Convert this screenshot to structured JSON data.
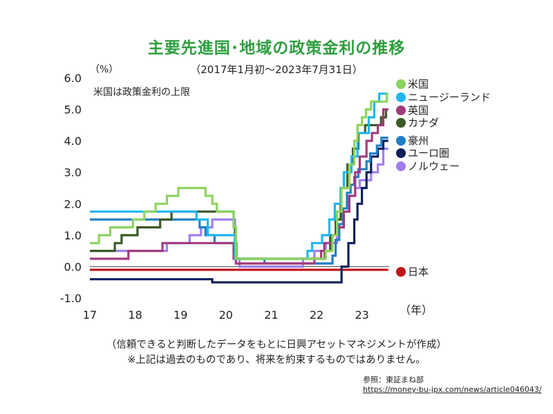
{
  "title": "主要先進国･地域の政策金利の推移",
  "subtitle": "（2017年1月初～2023年7月31日）",
  "unit": "（%）",
  "note": "米国は政策金利の上限",
  "footer_line1": "（信頼できると判断したデータをもとに日興アセットマネジメントが作成）",
  "footer_line2": "※上記は過去のものであり、将来を約束するものではありません。",
  "ref_label": "参照：東証まね部",
  "ref_url": "https://money-bu-jpx.com/news/article046043/",
  "chart_data": {
    "type": "line",
    "x_label_unit": "（年）",
    "xlim": [
      2017,
      2023.6
    ],
    "ylim": [
      -1.0,
      6.0
    ],
    "y_ticks": [
      "6.0",
      "5.0",
      "4.0",
      "3.0",
      "2.0",
      "1.0",
      "0.0",
      "-1.0"
    ],
    "x_ticks": [
      "17",
      "18",
      "19",
      "20",
      "21",
      "22",
      "23"
    ],
    "series": [
      {
        "name": "米国",
        "color": "#8dd35f",
        "points": [
          [
            2017.0,
            0.75
          ],
          [
            2017.2,
            0.75
          ],
          [
            2017.2,
            1.0
          ],
          [
            2017.45,
            1.0
          ],
          [
            2017.45,
            1.25
          ],
          [
            2017.95,
            1.25
          ],
          [
            2017.95,
            1.5
          ],
          [
            2018.2,
            1.5
          ],
          [
            2018.2,
            1.75
          ],
          [
            2018.45,
            1.75
          ],
          [
            2018.45,
            2.0
          ],
          [
            2018.7,
            2.0
          ],
          [
            2018.7,
            2.25
          ],
          [
            2018.95,
            2.25
          ],
          [
            2018.95,
            2.5
          ],
          [
            2019.55,
            2.5
          ],
          [
            2019.55,
            2.25
          ],
          [
            2019.7,
            2.25
          ],
          [
            2019.7,
            2.0
          ],
          [
            2019.8,
            2.0
          ],
          [
            2019.8,
            1.75
          ],
          [
            2020.17,
            1.75
          ],
          [
            2020.17,
            1.25
          ],
          [
            2020.22,
            1.25
          ],
          [
            2020.22,
            0.25
          ],
          [
            2022.2,
            0.25
          ],
          [
            2022.2,
            0.5
          ],
          [
            2022.35,
            0.5
          ],
          [
            2022.35,
            1.0
          ],
          [
            2022.45,
            1.0
          ],
          [
            2022.45,
            1.75
          ],
          [
            2022.55,
            1.75
          ],
          [
            2022.55,
            2.5
          ],
          [
            2022.72,
            2.5
          ],
          [
            2022.72,
            3.25
          ],
          [
            2022.83,
            3.25
          ],
          [
            2022.83,
            4.0
          ],
          [
            2022.9,
            4.0
          ],
          [
            2022.9,
            4.5
          ],
          [
            2023.0,
            4.5
          ],
          [
            2023.0,
            4.75
          ],
          [
            2023.09,
            4.75
          ],
          [
            2023.09,
            5.0
          ],
          [
            2023.2,
            5.0
          ],
          [
            2023.2,
            5.25
          ],
          [
            2023.55,
            5.25
          ],
          [
            2023.55,
            5.5
          ],
          [
            2023.58,
            5.5
          ]
        ]
      },
      {
        "name": "ニュージーランド",
        "color": "#1fb6f0",
        "points": [
          [
            2017.0,
            1.75
          ],
          [
            2019.35,
            1.75
          ],
          [
            2019.35,
            1.5
          ],
          [
            2019.6,
            1.5
          ],
          [
            2019.6,
            1.0
          ],
          [
            2020.2,
            1.0
          ],
          [
            2020.2,
            0.25
          ],
          [
            2021.8,
            0.25
          ],
          [
            2021.8,
            0.5
          ],
          [
            2021.9,
            0.5
          ],
          [
            2021.9,
            0.75
          ],
          [
            2022.12,
            0.75
          ],
          [
            2022.12,
            1.0
          ],
          [
            2022.28,
            1.0
          ],
          [
            2022.28,
            1.5
          ],
          [
            2022.4,
            1.5
          ],
          [
            2022.4,
            2.0
          ],
          [
            2022.53,
            2.0
          ],
          [
            2022.53,
            2.5
          ],
          [
            2022.6,
            2.5
          ],
          [
            2022.6,
            3.0
          ],
          [
            2022.77,
            3.0
          ],
          [
            2022.77,
            3.5
          ],
          [
            2022.9,
            3.5
          ],
          [
            2022.9,
            4.25
          ],
          [
            2023.15,
            4.25
          ],
          [
            2023.15,
            4.75
          ],
          [
            2023.27,
            4.75
          ],
          [
            2023.27,
            5.25
          ],
          [
            2023.38,
            5.25
          ],
          [
            2023.38,
            5.5
          ],
          [
            2023.58,
            5.5
          ]
        ]
      },
      {
        "name": "英国",
        "color": "#a23a7c",
        "points": [
          [
            2017.0,
            0.25
          ],
          [
            2017.85,
            0.25
          ],
          [
            2017.85,
            0.5
          ],
          [
            2018.6,
            0.5
          ],
          [
            2018.6,
            0.75
          ],
          [
            2020.17,
            0.75
          ],
          [
            2020.17,
            0.25
          ],
          [
            2020.22,
            0.25
          ],
          [
            2020.22,
            0.1
          ],
          [
            2021.95,
            0.1
          ],
          [
            2021.95,
            0.25
          ],
          [
            2022.1,
            0.25
          ],
          [
            2022.1,
            0.5
          ],
          [
            2022.17,
            0.5
          ],
          [
            2022.17,
            0.75
          ],
          [
            2022.35,
            0.75
          ],
          [
            2022.35,
            1.0
          ],
          [
            2022.45,
            1.0
          ],
          [
            2022.45,
            1.25
          ],
          [
            2022.6,
            1.25
          ],
          [
            2022.6,
            1.75
          ],
          [
            2022.72,
            1.75
          ],
          [
            2022.72,
            2.25
          ],
          [
            2022.85,
            2.25
          ],
          [
            2022.85,
            3.0
          ],
          [
            2022.95,
            3.0
          ],
          [
            2022.95,
            3.5
          ],
          [
            2023.1,
            3.5
          ],
          [
            2023.1,
            4.0
          ],
          [
            2023.22,
            4.0
          ],
          [
            2023.22,
            4.25
          ],
          [
            2023.35,
            4.25
          ],
          [
            2023.35,
            4.5
          ],
          [
            2023.47,
            4.5
          ],
          [
            2023.47,
            5.0
          ],
          [
            2023.58,
            5.0
          ]
        ]
      },
      {
        "name": "カナダ",
        "color": "#3a5a25",
        "points": [
          [
            2017.0,
            0.5
          ],
          [
            2017.55,
            0.5
          ],
          [
            2017.55,
            0.75
          ],
          [
            2017.7,
            0.75
          ],
          [
            2017.7,
            1.0
          ],
          [
            2018.05,
            1.0
          ],
          [
            2018.05,
            1.25
          ],
          [
            2018.55,
            1.25
          ],
          [
            2018.55,
            1.5
          ],
          [
            2018.8,
            1.5
          ],
          [
            2018.8,
            1.75
          ],
          [
            2020.17,
            1.75
          ],
          [
            2020.17,
            1.25
          ],
          [
            2020.2,
            1.25
          ],
          [
            2020.2,
            0.75
          ],
          [
            2020.23,
            0.75
          ],
          [
            2020.23,
            0.25
          ],
          [
            2022.18,
            0.25
          ],
          [
            2022.18,
            0.5
          ],
          [
            2022.3,
            0.5
          ],
          [
            2022.3,
            1.0
          ],
          [
            2022.42,
            1.0
          ],
          [
            2022.42,
            1.5
          ],
          [
            2022.53,
            1.5
          ],
          [
            2022.53,
            2.5
          ],
          [
            2022.68,
            2.5
          ],
          [
            2022.68,
            3.25
          ],
          [
            2022.8,
            3.25
          ],
          [
            2022.8,
            3.75
          ],
          [
            2022.92,
            3.75
          ],
          [
            2022.92,
            4.25
          ],
          [
            2023.07,
            4.25
          ],
          [
            2023.07,
            4.5
          ],
          [
            2023.42,
            4.5
          ],
          [
            2023.42,
            4.75
          ],
          [
            2023.53,
            4.75
          ],
          [
            2023.53,
            5.0
          ],
          [
            2023.58,
            5.0
          ]
        ]
      },
      {
        "name": "豪州",
        "color": "#1f7fc4",
        "points": [
          [
            2017.0,
            1.5
          ],
          [
            2019.42,
            1.5
          ],
          [
            2019.42,
            1.25
          ],
          [
            2019.55,
            1.25
          ],
          [
            2019.55,
            1.0
          ],
          [
            2019.75,
            1.0
          ],
          [
            2019.75,
            0.75
          ],
          [
            2020.17,
            0.75
          ],
          [
            2020.17,
            0.5
          ],
          [
            2020.2,
            0.5
          ],
          [
            2020.2,
            0.25
          ],
          [
            2020.85,
            0.25
          ],
          [
            2020.85,
            0.1
          ],
          [
            2022.35,
            0.1
          ],
          [
            2022.35,
            0.35
          ],
          [
            2022.42,
            0.35
          ],
          [
            2022.42,
            0.85
          ],
          [
            2022.5,
            0.85
          ],
          [
            2022.5,
            1.35
          ],
          [
            2022.58,
            1.35
          ],
          [
            2022.58,
            1.85
          ],
          [
            2022.67,
            1.85
          ],
          [
            2022.67,
            2.35
          ],
          [
            2022.75,
            2.35
          ],
          [
            2022.75,
            2.6
          ],
          [
            2022.83,
            2.6
          ],
          [
            2022.83,
            2.85
          ],
          [
            2022.92,
            2.85
          ],
          [
            2022.92,
            3.1
          ],
          [
            2023.1,
            3.1
          ],
          [
            2023.1,
            3.35
          ],
          [
            2023.18,
            3.35
          ],
          [
            2023.18,
            3.6
          ],
          [
            2023.33,
            3.6
          ],
          [
            2023.33,
            3.85
          ],
          [
            2023.43,
            3.85
          ],
          [
            2023.43,
            4.1
          ],
          [
            2023.58,
            4.1
          ]
        ]
      },
      {
        "name": "ユーロ圏",
        "color": "#0a1f5c",
        "points": [
          [
            2017.0,
            -0.4
          ],
          [
            2019.7,
            -0.4
          ],
          [
            2019.7,
            -0.5
          ],
          [
            2022.55,
            -0.5
          ],
          [
            2022.55,
            0.0
          ],
          [
            2022.7,
            0.0
          ],
          [
            2022.7,
            0.75
          ],
          [
            2022.83,
            0.75
          ],
          [
            2022.83,
            1.5
          ],
          [
            2022.9,
            1.5
          ],
          [
            2022.9,
            2.0
          ],
          [
            2023.0,
            2.0
          ],
          [
            2023.0,
            2.5
          ],
          [
            2023.1,
            2.5
          ],
          [
            2023.1,
            3.0
          ],
          [
            2023.2,
            3.0
          ],
          [
            2023.2,
            3.5
          ],
          [
            2023.35,
            3.5
          ],
          [
            2023.35,
            3.75
          ],
          [
            2023.47,
            3.75
          ],
          [
            2023.47,
            4.0
          ],
          [
            2023.58,
            4.0
          ]
        ]
      },
      {
        "name": "ノルウェー",
        "color": "#a07ef0",
        "points": [
          [
            2017.0,
            0.5
          ],
          [
            2018.7,
            0.5
          ],
          [
            2018.7,
            0.75
          ],
          [
            2019.2,
            0.75
          ],
          [
            2019.2,
            1.0
          ],
          [
            2019.45,
            1.0
          ],
          [
            2019.45,
            1.25
          ],
          [
            2019.7,
            1.25
          ],
          [
            2019.7,
            1.5
          ],
          [
            2020.2,
            1.5
          ],
          [
            2020.2,
            1.0
          ],
          [
            2020.22,
            1.0
          ],
          [
            2020.22,
            0.25
          ],
          [
            2020.3,
            0.25
          ],
          [
            2020.3,
            0.0
          ],
          [
            2021.7,
            0.0
          ],
          [
            2021.7,
            0.25
          ],
          [
            2021.95,
            0.25
          ],
          [
            2021.95,
            0.5
          ],
          [
            2022.2,
            0.5
          ],
          [
            2022.2,
            0.75
          ],
          [
            2022.45,
            0.75
          ],
          [
            2022.45,
            1.25
          ],
          [
            2022.6,
            1.25
          ],
          [
            2022.6,
            1.75
          ],
          [
            2022.72,
            1.75
          ],
          [
            2022.72,
            2.25
          ],
          [
            2022.85,
            2.25
          ],
          [
            2022.85,
            2.5
          ],
          [
            2022.95,
            2.5
          ],
          [
            2022.95,
            2.75
          ],
          [
            2023.2,
            2.75
          ],
          [
            2023.2,
            3.0
          ],
          [
            2023.35,
            3.0
          ],
          [
            2023.35,
            3.25
          ],
          [
            2023.47,
            3.25
          ],
          [
            2023.47,
            3.75
          ],
          [
            2023.58,
            3.75
          ]
        ]
      },
      {
        "name": "日本",
        "color": "#c0141a",
        "points": [
          [
            2017.0,
            -0.1
          ],
          [
            2023.58,
            -0.1
          ]
        ]
      }
    ]
  }
}
